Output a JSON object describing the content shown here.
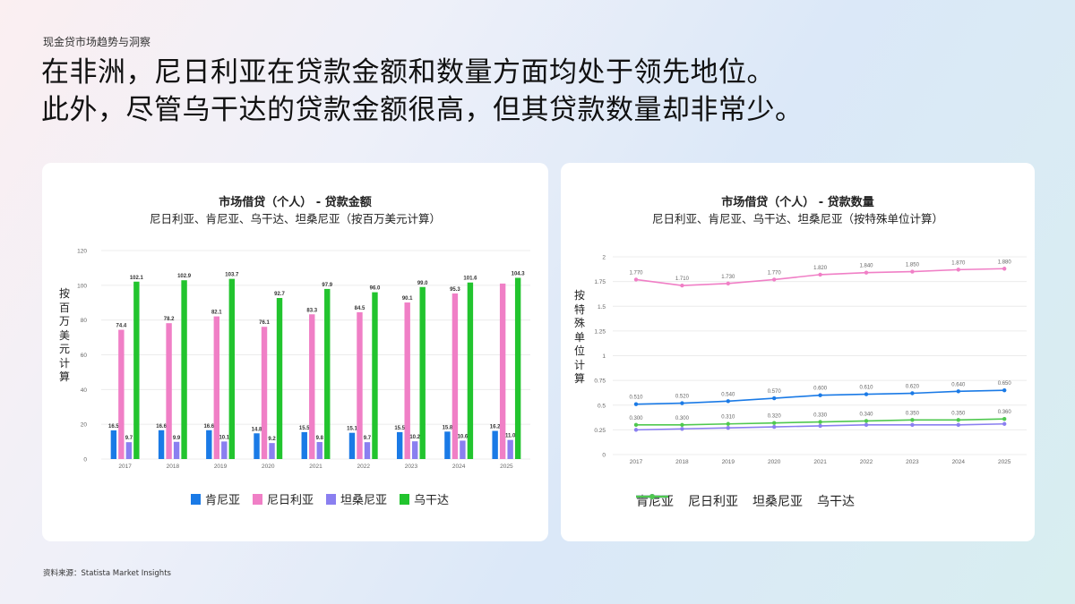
{
  "page": {
    "kicker": "现金贷市场趋势与洞察",
    "headline_line1": "在非洲，尼日利亚在贷款金额和数量方面均处于领先地位。",
    "headline_line2": "此外，尽管乌干达的贷款金额很高，但其贷款数量却非常少。",
    "source": "资料来源：Statista Market Insights"
  },
  "chart_data": [
    {
      "type": "bar",
      "title": "市场借贷（个人） - 贷款金额",
      "subtitle": "尼日利亚、肯尼亚、乌干达、坦桑尼亚（按百万美元计算）",
      "ylabel": "按百万美元计算",
      "xlabel": "",
      "ylim": [
        0,
        120
      ],
      "yticks": [
        0,
        20,
        40,
        60,
        80,
        100,
        120
      ],
      "categories": [
        "2017",
        "2018",
        "2019",
        "2020",
        "2021",
        "2022",
        "2023",
        "2024",
        "2025"
      ],
      "grid": true,
      "legend_position": "bottom",
      "series": [
        {
          "name": "肯尼亚",
          "color": "#1a7ae6",
          "values": [
            16.5,
            16.6,
            16.6,
            14.8,
            15.5,
            15.1,
            15.5,
            15.8,
            16.2
          ],
          "labels": [
            "16.5",
            "16.6",
            "16.6",
            "14.8",
            "15.5",
            "15.1",
            "15.5",
            "15.8",
            "16.2"
          ]
        },
        {
          "name": "尼日利亚",
          "color": "#f07fc6",
          "values": [
            74.4,
            78.2,
            82.1,
            76.1,
            83.3,
            84.5,
            90.1,
            95.3,
            101.0
          ],
          "labels": [
            "74.4",
            "78.2",
            "82.1",
            "76.1",
            "83.3",
            "84.5",
            "90.1",
            "95.3",
            ""
          ]
        },
        {
          "name": "坦桑尼亚",
          "color": "#8a7ff0",
          "values": [
            9.7,
            9.9,
            10.1,
            9.2,
            9.8,
            9.7,
            10.2,
            10.6,
            11.0
          ],
          "labels": [
            "9.7",
            "9.9",
            "10.1",
            "9.2",
            "9.8",
            "9.7",
            "10.2",
            "10.6",
            "11.0"
          ]
        },
        {
          "name": "乌干达",
          "color": "#22c42e",
          "values": [
            102.1,
            102.9,
            103.7,
            92.7,
            97.9,
            96.0,
            99.0,
            101.6,
            104.3
          ],
          "labels": [
            "102.1",
            "102.9",
            "103.7",
            "92.7",
            "97.9",
            "96.0",
            "99.0",
            "101.6",
            "104.3"
          ]
        }
      ]
    },
    {
      "type": "line",
      "title": "市场借贷（个人） - 贷款数量",
      "subtitle": "尼日利亚、肯尼亚、乌干达、坦桑尼亚（按特殊单位计算）",
      "ylabel": "按特殊单位计算",
      "xlabel": "",
      "ylim": [
        0,
        2
      ],
      "yticks": [
        "0",
        "0.25",
        "0.5",
        "0.75",
        "1",
        "1.25",
        "1.5",
        "1.75",
        "2"
      ],
      "categories": [
        "2017",
        "2018",
        "2019",
        "2020",
        "2021",
        "2022",
        "2023",
        "2024",
        "2025"
      ],
      "grid": true,
      "legend_position": "bottom",
      "series": [
        {
          "name": "肯尼亚",
          "color": "#1a7ae6",
          "values": [
            0.51,
            0.52,
            0.54,
            0.57,
            0.6,
            0.61,
            0.62,
            0.64,
            0.65
          ],
          "labels": [
            "0.510",
            "0.520",
            "0.540",
            "0.570",
            "0.600",
            "0.610",
            "0.620",
            "0.640",
            "0.650"
          ]
        },
        {
          "name": "尼日利亚",
          "color": "#f07fc6",
          "values": [
            1.77,
            1.71,
            1.73,
            1.77,
            1.82,
            1.84,
            1.85,
            1.87,
            1.88
          ],
          "labels": [
            "1.770",
            "1.710",
            "1.730",
            "1.770",
            "1.820",
            "1.840",
            "1.850",
            "1.870",
            "1.880"
          ]
        },
        {
          "name": "坦桑尼亚",
          "color": "#8a7ff0",
          "values": [
            0.25,
            0.26,
            0.27,
            0.28,
            0.29,
            0.3,
            0.3,
            0.3,
            0.31
          ],
          "labels": [],
          "hidden_labels": true
        },
        {
          "name": "乌干达",
          "color": "#4fc84f",
          "values": [
            0.3,
            0.3,
            0.31,
            0.32,
            0.33,
            0.34,
            0.35,
            0.35,
            0.36
          ],
          "labels": [
            "0.300",
            "0.300",
            "0.310",
            "0.320",
            "0.330",
            "0.340",
            "0.350",
            "0.350",
            "0.360"
          ]
        }
      ]
    }
  ]
}
